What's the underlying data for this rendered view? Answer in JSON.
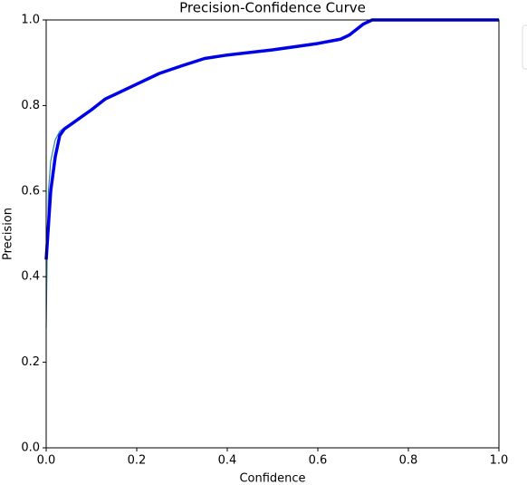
{
  "chart_data": {
    "type": "line",
    "title": "Precision-Confidence Curve",
    "xlabel": "Confidence",
    "ylabel": "Precision",
    "xlim": [
      0,
      1
    ],
    "ylim": [
      0,
      1
    ],
    "xticks": [
      {
        "value": 0,
        "label": "0.0"
      },
      0.2,
      0.4,
      0.6,
      0.8,
      {
        "value": 1,
        "label": "1.0"
      }
    ],
    "yticks": [
      {
        "value": 0,
        "label": "0.0"
      },
      0.2,
      0.4,
      0.6,
      0.8,
      {
        "value": 1,
        "label": "1.0"
      }
    ],
    "series": [
      {
        "color": "#2b86ad",
        "width": 1.2,
        "x": [
          0,
          0.002,
          0.005,
          0.01,
          0.02,
          0.03,
          0.04,
          0.06,
          0.08,
          0.1,
          0.13,
          0.2,
          0.25,
          0.3,
          0.35,
          0.4,
          0.5,
          0.6,
          0.65,
          0.67,
          0.7,
          0.72,
          0.8,
          1.0
        ],
        "values": [
          0.28,
          0.44,
          0.6,
          0.67,
          0.72,
          0.74,
          0.748,
          0.76,
          0.775,
          0.79,
          0.815,
          0.85,
          0.875,
          0.893,
          0.91,
          0.918,
          0.93,
          0.945,
          0.955,
          0.965,
          0.99,
          1.0,
          1.0,
          1.0
        ]
      },
      {
        "color": "#0000e6",
        "width": 3.5,
        "x": [
          0,
          0.01,
          0.02,
          0.03,
          0.04,
          0.06,
          0.08,
          0.1,
          0.13,
          0.2,
          0.25,
          0.3,
          0.35,
          0.4,
          0.5,
          0.6,
          0.65,
          0.67,
          0.7,
          0.72,
          0.8,
          1.0
        ],
        "values": [
          0.44,
          0.6,
          0.68,
          0.73,
          0.745,
          0.76,
          0.775,
          0.79,
          0.815,
          0.85,
          0.875,
          0.893,
          0.91,
          0.918,
          0.93,
          0.945,
          0.955,
          0.965,
          0.99,
          1.0,
          1.0,
          1.0
        ]
      }
    ]
  }
}
